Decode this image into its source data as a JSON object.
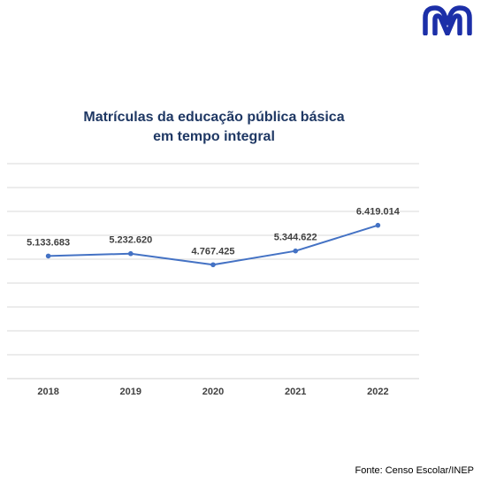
{
  "brand": {
    "logo_icon": "double-arch-logo-icon",
    "logo_color": "#1c2fa8"
  },
  "chart_data": {
    "type": "line",
    "title": "Matrículas da educação pública básica em tempo integral",
    "title_lines": [
      "Matrículas da educação pública básica",
      "em tempo integral"
    ],
    "categories": [
      "2018",
      "2019",
      "2020",
      "2021",
      "2022"
    ],
    "values": [
      5133683,
      5232620,
      4767425,
      5344622,
      6419014
    ],
    "value_labels": [
      "5.133.683",
      "5.232.620",
      "4.767.425",
      "5.344.622",
      "6.419.014"
    ],
    "ylim": [
      0,
      9000000
    ],
    "grid": true,
    "legend": "none",
    "line_color": "#4472c4"
  },
  "source": "Fonte: Censo Escolar/INEP"
}
